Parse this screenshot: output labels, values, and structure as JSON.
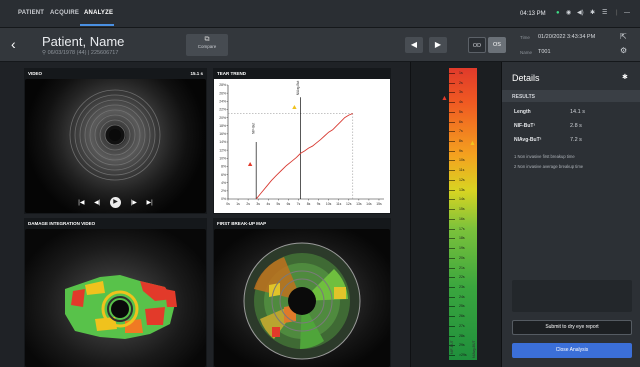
{
  "nav": {
    "tabs": [
      "PATIENT",
      "ACQUIRE",
      "ANALYZE"
    ],
    "active": "ANALYZE",
    "time": "04:13 PM"
  },
  "patient": {
    "name": "Patient, Name",
    "info": "06/03/1978 (44) | 225606717",
    "compare_label": "Compare",
    "eye_od": "OD",
    "eye_os": "OS",
    "time_label": "Time",
    "time_value": "01/20/2022 3:43:34 PM",
    "name_label": "Name",
    "name_value": "T001"
  },
  "panels": {
    "video": {
      "title": "VIDEO",
      "speed": "15.1 s"
    },
    "tear_trend": {
      "title": "TEAR TREND"
    },
    "damage": {
      "title": "DAMAGE INTEGRATION VIDEO"
    },
    "breakup": {
      "title": "FIRST BREAK-UP MAP"
    }
  },
  "chart_data": {
    "type": "line",
    "title": "",
    "x_ticks": [
      "0s",
      "1s",
      "2s",
      "3s",
      "4s",
      "5s",
      "6s",
      "7s",
      "8s",
      "9s",
      "10s",
      "11s",
      "12s",
      "13s",
      "14s",
      "15s"
    ],
    "y_ticks": [
      "0%",
      "2%",
      "4%",
      "6%",
      "8%",
      "10%",
      "12%",
      "14%",
      "16%",
      "18%",
      "20%",
      "22%",
      "24%",
      "26%",
      "28%"
    ],
    "ylim": [
      0,
      28
    ],
    "xlim": [
      0,
      15.5
    ],
    "series": [
      {
        "x": [
          2.8,
          3.3,
          3.8,
          4.3,
          4.8,
          5.3,
          5.8,
          6.3,
          6.8,
          7.2,
          7.6,
          8.0,
          8.4,
          8.8,
          9.2,
          9.6,
          10.0,
          10.4,
          10.8,
          11.2,
          11.6,
          12.0,
          12.4
        ],
        "y": [
          0,
          1.5,
          3.0,
          4.5,
          5.8,
          7.0,
          8.2,
          9.2,
          10.2,
          11.2,
          11.8,
          12.5,
          13.0,
          13.8,
          14.6,
          15.5,
          16.4,
          17.0,
          18.0,
          19.0,
          20.0,
          20.6,
          21.0
        ]
      }
    ],
    "markers": [
      {
        "label": "NIF-But",
        "x": 2.8
      },
      {
        "label": "NIAvg-But",
        "x": 7.2
      }
    ],
    "hline_y": 21
  },
  "scale": {
    "ticks": [
      "1s",
      "2s",
      "3s",
      "4s",
      "5s",
      "6s",
      "7s",
      "8s",
      "9s",
      "10s",
      "11s",
      "12s",
      "13s",
      "14s",
      "15s",
      "16s",
      "17s",
      "18s",
      "19s",
      "20s",
      "21s",
      "22s",
      "23s",
      "24s",
      "25s",
      "26s",
      "27s",
      "28s",
      "29s",
      ">29s"
    ],
    "left_label": "NIF-BUT",
    "right_label": "NIAvg-BUT"
  },
  "details": {
    "title": "Details",
    "subtitle": "RESULTS",
    "results": [
      {
        "label": "Length",
        "value": "14.1 s"
      },
      {
        "label": "NIF-BuT¹",
        "value": "2.8 s"
      },
      {
        "label": "NIAvg-BuT²",
        "value": "7.2 s"
      }
    ],
    "notes": [
      "1 Non invasive first breakup time",
      "2 Non invasive average breakup time"
    ],
    "submit_label": "Submit to dry eye report",
    "close_label": "Close Analysis"
  }
}
